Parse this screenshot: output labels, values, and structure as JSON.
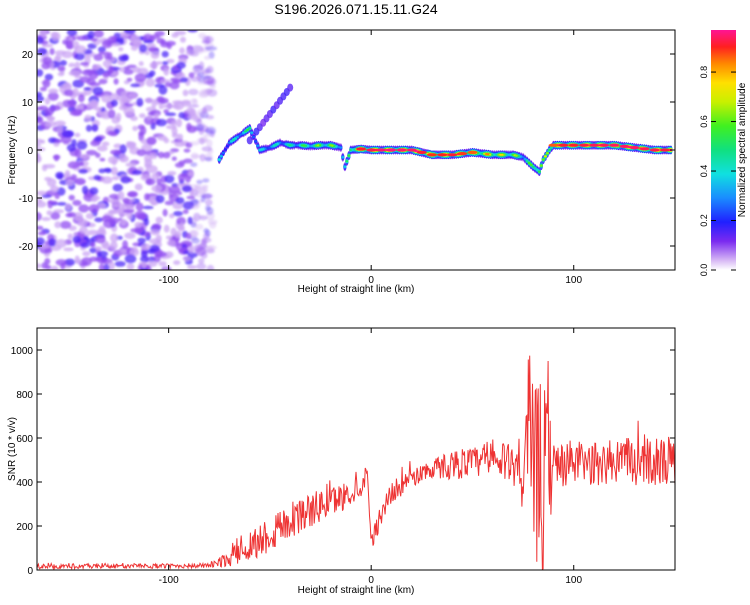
{
  "title": "S196.2026.071.15.11.G24",
  "chart_data": [
    {
      "type": "heatmap",
      "name": "spectrogram",
      "xlabel": "Height of straight line (km)",
      "ylabel": "Frequency (Hz)",
      "xlim": [
        -165,
        150
      ],
      "ylim": [
        -25,
        25
      ],
      "xticks": [
        -100,
        0,
        100
      ],
      "yticks": [
        -20,
        -10,
        0,
        10,
        20
      ],
      "colorbar": {
        "label": "Normalized spectral amplitude",
        "range": [
          0,
          0.97
        ],
        "ticks": [
          "0.0",
          "0.2",
          "0.4",
          "0.6",
          "0.8"
        ],
        "tick_values": [
          0,
          0.2,
          0.4,
          0.6,
          0.8
        ]
      },
      "noise_region_x": [
        -165,
        -78
      ],
      "ridge": {
        "x": [
          -75,
          -70,
          -65,
          -60,
          -55,
          -50,
          -45,
          -40,
          -35,
          -30,
          -25,
          -20,
          -15,
          -13,
          -10,
          -5,
          0,
          10,
          20,
          30,
          40,
          50,
          60,
          70,
          75,
          80,
          83,
          85,
          88,
          90,
          95,
          100,
          110,
          120,
          130,
          140,
          148
        ],
        "y": [
          -2,
          1.5,
          3,
          4.5,
          0,
          0.5,
          1.5,
          1.0,
          1.0,
          0.8,
          1.0,
          1.0,
          0.5,
          -3.5,
          0,
          0.2,
          0,
          0,
          0,
          -1.0,
          -1.0,
          -0.5,
          -1.0,
          -1.0,
          -1.5,
          -3.5,
          -4.5,
          -2,
          0,
          1.0,
          1.0,
          1.0,
          1.0,
          1.0,
          0.5,
          0,
          0
        ],
        "amplitude": [
          0.35,
          0.35,
          0.45,
          0.5,
          0.35,
          0.4,
          0.4,
          0.45,
          0.5,
          0.55,
          0.6,
          0.6,
          0.5,
          0.35,
          0.7,
          0.9,
          0.92,
          0.95,
          0.93,
          0.88,
          0.9,
          0.85,
          0.75,
          0.65,
          0.5,
          0.55,
          0.85,
          0.55,
          0.8,
          0.85,
          0.9,
          0.9,
          0.92,
          0.93,
          0.93,
          0.92,
          0.9
        ]
      },
      "streak": {
        "x": [
          -60,
          -40
        ],
        "y": [
          2,
          13
        ]
      }
    },
    {
      "type": "line",
      "name": "snr",
      "xlabel": "Height of straight line (km)",
      "ylabel": "SNR (10 * v/v)",
      "xlim": [
        -165,
        150
      ],
      "ylim": [
        0,
        1100
      ],
      "xticks": [
        -100,
        0,
        100
      ],
      "yticks": [
        0,
        200,
        400,
        600,
        800,
        1000
      ],
      "color": "#ee3333",
      "series": [
        {
          "name": "SNR",
          "envelope_x": [
            -165,
            -110,
            -80,
            -70,
            -60,
            -50,
            -40,
            -30,
            -20,
            -10,
            -4,
            -2,
            0,
            5,
            10,
            20,
            30,
            40,
            50,
            60,
            70,
            75,
            80,
            85,
            90,
            100,
            110,
            120,
            130,
            140,
            150
          ],
          "envelope_mean": [
            15,
            18,
            20,
            50,
            110,
            165,
            230,
            270,
            310,
            350,
            390,
            470,
            120,
            260,
            350,
            420,
            460,
            480,
            490,
            490,
            490,
            480,
            450,
            400,
            470,
            490,
            480,
            490,
            490,
            495,
            490
          ],
          "envelope_amp": [
            10,
            10,
            12,
            35,
            70,
            90,
            90,
            80,
            70,
            60,
            50,
            30,
            30,
            60,
            50,
            45,
            45,
            70,
            70,
            80,
            90,
            250,
            350,
            500,
            120,
            100,
            100,
            110,
            110,
            110,
            120
          ]
        }
      ]
    }
  ]
}
